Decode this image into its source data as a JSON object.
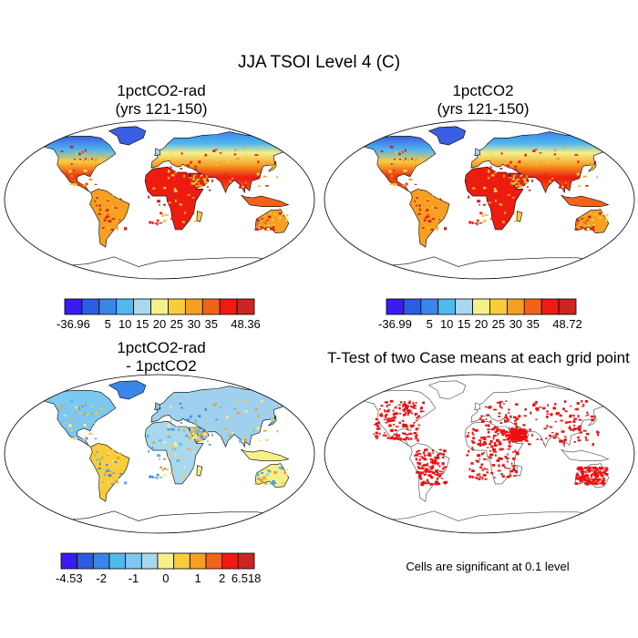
{
  "title": "JJA TSOI Level 4 (C)",
  "panels": {
    "top_left": {
      "title_line1": "1pctCO2-rad",
      "title_line2": "(yrs 121-150)",
      "colorbar": {
        "labels": [
          "-36.96",
          "5",
          "10",
          "15",
          "20",
          "25",
          "30",
          "35",
          "48.36"
        ],
        "colors": [
          "#3b1cf0",
          "#2b5de0",
          "#3a86e8",
          "#52b8f0",
          "#a8d8ee",
          "#f5f08a",
          "#f8cc3c",
          "#f5a022",
          "#f0641a",
          "#ee1c10",
          "#cc2422"
        ]
      }
    },
    "top_right": {
      "title_line1": "1pctCO2",
      "title_line2": "(yrs 121-150)",
      "colorbar": {
        "labels": [
          "-36.99",
          "5",
          "10",
          "15",
          "20",
          "25",
          "30",
          "35",
          "48.72"
        ],
        "colors": [
          "#3b1cf0",
          "#2b5de0",
          "#3a86e8",
          "#52b8f0",
          "#a8d8ee",
          "#f5f08a",
          "#f8cc3c",
          "#f5a022",
          "#f0641a",
          "#ee1c10",
          "#cc2422"
        ]
      }
    },
    "bottom_left": {
      "title_line1": "1pctCO2-rad",
      "title_line2": "- 1pctCO2",
      "colorbar": {
        "labels": [
          "-4.53",
          "-2",
          "-1",
          "0",
          "1",
          "2",
          "6.518"
        ],
        "colors": [
          "#3b1cf0",
          "#2b5de0",
          "#3a86e8",
          "#52b8f0",
          "#7cc8f0",
          "#a8d8ee",
          "#f5f08a",
          "#f8cc3c",
          "#f5a022",
          "#f0641a",
          "#ee1c10",
          "#cc2422"
        ]
      }
    },
    "bottom_right": {
      "title": "T-Test of two Case means at each grid point",
      "note": "Cells are significant at 0.1 level",
      "significance_color": "#ee1010"
    }
  },
  "map_colors": {
    "ocean": "#ffffff",
    "coastline": "#000000"
  }
}
